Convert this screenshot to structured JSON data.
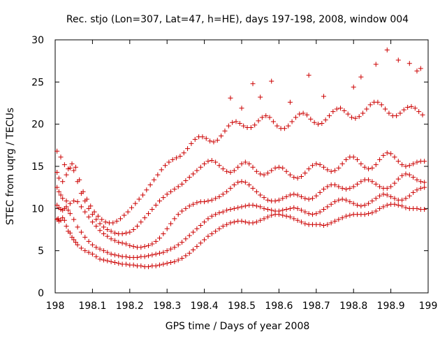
{
  "chart_data": {
    "type": "scatter",
    "title": "Rec. stjo (Lon=307, Lat=47, h=HE), days 197-198, 2008, window 004",
    "xlabel": "GPS time / Days of year 2008",
    "ylabel": "STEC from uqrg / TECUs",
    "xlim": [
      198,
      199
    ],
    "ylim": [
      0,
      30
    ],
    "x_ticks": [
      198,
      198.1,
      198.2,
      198.3,
      198.4,
      198.5,
      198.6,
      198.7,
      198.8,
      198.9,
      199
    ],
    "x_tick_labels": [
      "198",
      "198.1",
      "198.2",
      "198.3",
      "198.4",
      "198.5",
      "198.6",
      "198.7",
      "198.8",
      "198.9",
      "199"
    ],
    "y_ticks": [
      0,
      5,
      10,
      15,
      20,
      25,
      30
    ],
    "y_tick_labels": [
      "0",
      "5",
      "10",
      "15",
      "20",
      "25",
      "30"
    ],
    "grid": false,
    "legend": "none",
    "marker": "plus",
    "color": "#cc0000",
    "series": [
      {
        "x": [
          198.005,
          198.008,
          198.01,
          198.015,
          198.02,
          198.025,
          198.03,
          198.035,
          198.04,
          198.045,
          198.05,
          198.055,
          198.06,
          198.07,
          198.08,
          198.09,
          198.1,
          198.11,
          198.12,
          198.13,
          198.14,
          198.15,
          198.16,
          198.17,
          198.18,
          198.19,
          198.2,
          198.21,
          198.22,
          198.23,
          198.24,
          198.25,
          198.26,
          198.27,
          198.28,
          198.29,
          198.3,
          198.31,
          198.32,
          198.33,
          198.34,
          198.35,
          198.36,
          198.37,
          198.38,
          198.39,
          198.4,
          198.41,
          198.42,
          198.43,
          198.44,
          198.45,
          198.46,
          198.47,
          198.48,
          198.49,
          198.5,
          198.51,
          198.52,
          198.53,
          198.54,
          198.55,
          198.56,
          198.57,
          198.58,
          198.59,
          198.6,
          198.61,
          198.62,
          198.63,
          198.64,
          198.65,
          198.66,
          198.67,
          198.68,
          198.69,
          198.7,
          198.71,
          198.72,
          198.73,
          198.74,
          198.75,
          198.76,
          198.77,
          198.78,
          198.79,
          198.8,
          198.81,
          198.82,
          198.83,
          198.84,
          198.85,
          198.86,
          198.87,
          198.88,
          198.89,
          198.9,
          198.91,
          198.92,
          198.93,
          198.94,
          198.95,
          198.96,
          198.97,
          198.98,
          198.99
        ],
        "y": [
          8.7,
          8.8,
          8.5,
          8.6,
          8.9,
          8.6,
          7.9,
          7.3,
          7.1,
          6.6,
          6.3,
          6.0,
          5.7,
          5.3,
          5.0,
          4.8,
          4.6,
          4.3,
          4.0,
          3.9,
          3.8,
          3.7,
          3.6,
          3.5,
          3.4,
          3.4,
          3.3,
          3.3,
          3.2,
          3.2,
          3.1,
          3.1,
          3.2,
          3.2,
          3.3,
          3.4,
          3.5,
          3.6,
          3.7,
          3.9,
          4.1,
          4.4,
          4.7,
          5.1,
          5.5,
          5.9,
          6.3,
          6.7,
          7.0,
          7.3,
          7.6,
          7.9,
          8.1,
          8.3,
          8.4,
          8.5,
          8.5,
          8.4,
          8.3,
          8.3,
          8.4,
          8.6,
          8.8,
          9.0,
          9.2,
          9.3,
          9.3,
          9.2,
          9.1,
          9.0,
          8.8,
          8.6,
          8.4,
          8.2,
          8.1,
          8.1,
          8.1,
          8.1,
          8.0,
          8.1,
          8.3,
          8.5,
          8.7,
          8.9,
          9.1,
          9.2,
          9.3,
          9.3,
          9.3,
          9.3,
          9.4,
          9.5,
          9.7,
          10.0,
          10.2,
          10.4,
          10.5,
          10.5,
          10.4,
          10.3,
          10.1,
          10.0,
          10.0,
          10.0,
          9.9,
          9.9
        ]
      },
      {
        "x": [
          198.005,
          198.01,
          198.015,
          198.02,
          198.025,
          198.03,
          198.035,
          198.04,
          198.05,
          198.06,
          198.07,
          198.08,
          198.09,
          198.1,
          198.11,
          198.12,
          198.13,
          198.14,
          198.15,
          198.16,
          198.17,
          198.18,
          198.19,
          198.2,
          198.21,
          198.22,
          198.23,
          198.24,
          198.25,
          198.26,
          198.27,
          198.28,
          198.29,
          198.3,
          198.31,
          198.32,
          198.33,
          198.34,
          198.35,
          198.36,
          198.37,
          198.38,
          198.39,
          198.4,
          198.41,
          198.42,
          198.43,
          198.44,
          198.45,
          198.46,
          198.47,
          198.48,
          198.49,
          198.5,
          198.51,
          198.52,
          198.53,
          198.54,
          198.55,
          198.56,
          198.57,
          198.58,
          198.59,
          198.6,
          198.61,
          198.62,
          198.63,
          198.64,
          198.65,
          198.66,
          198.67,
          198.68,
          198.69,
          198.7,
          198.71,
          198.72,
          198.73,
          198.74,
          198.75,
          198.76,
          198.77,
          198.78,
          198.79,
          198.8,
          198.81,
          198.82,
          198.83,
          198.84,
          198.85,
          198.86,
          198.87,
          198.88,
          198.89,
          198.9,
          198.91,
          198.92,
          198.93,
          198.94,
          198.95,
          198.96,
          198.97,
          198.98,
          198.99
        ],
        "y": [
          10.4,
          10.1,
          9.9,
          9.8,
          10.0,
          10.2,
          9.8,
          9.4,
          8.7,
          7.8,
          7.2,
          6.6,
          6.1,
          5.7,
          5.4,
          5.2,
          5.0,
          4.8,
          4.6,
          4.5,
          4.4,
          4.3,
          4.3,
          4.2,
          4.2,
          4.2,
          4.3,
          4.3,
          4.4,
          4.5,
          4.6,
          4.7,
          4.8,
          5.0,
          5.2,
          5.4,
          5.7,
          6.0,
          6.4,
          6.8,
          7.2,
          7.6,
          8.0,
          8.4,
          8.8,
          9.1,
          9.3,
          9.5,
          9.6,
          9.8,
          9.9,
          10.0,
          10.1,
          10.2,
          10.3,
          10.4,
          10.4,
          10.3,
          10.2,
          10.0,
          9.9,
          9.8,
          9.7,
          9.7,
          9.8,
          9.9,
          10.0,
          10.1,
          10.0,
          9.8,
          9.6,
          9.4,
          9.3,
          9.4,
          9.6,
          9.9,
          10.2,
          10.5,
          10.8,
          11.0,
          11.1,
          11.0,
          10.8,
          10.6,
          10.4,
          10.3,
          10.4,
          10.6,
          10.9,
          11.2,
          11.5,
          11.7,
          11.6,
          11.4,
          11.2,
          11.0,
          11.0,
          11.2,
          11.5,
          11.9,
          12.2,
          12.4,
          12.5
        ]
      },
      {
        "x": [
          198.005,
          198.01,
          198.015,
          198.02,
          198.03,
          198.04,
          198.05,
          198.06,
          198.07,
          198.08,
          198.09,
          198.1,
          198.11,
          198.12,
          198.13,
          198.14,
          198.15,
          198.16,
          198.17,
          198.18,
          198.19,
          198.2,
          198.21,
          198.22,
          198.23,
          198.24,
          198.25,
          198.26,
          198.27,
          198.28,
          198.29,
          198.3,
          198.31,
          198.32,
          198.33,
          198.34,
          198.35,
          198.36,
          198.37,
          198.38,
          198.39,
          198.4,
          198.41,
          198.42,
          198.43,
          198.44,
          198.45,
          198.46,
          198.47,
          198.48,
          198.49,
          198.5,
          198.51,
          198.52,
          198.53,
          198.54,
          198.55,
          198.56,
          198.57,
          198.58,
          198.59,
          198.6,
          198.61,
          198.62,
          198.63,
          198.64,
          198.65,
          198.66,
          198.67,
          198.68,
          198.69,
          198.7,
          198.71,
          198.72,
          198.73,
          198.74,
          198.75,
          198.76,
          198.77,
          198.78,
          198.79,
          198.8,
          198.81,
          198.82,
          198.83,
          198.84,
          198.85,
          198.86,
          198.87,
          198.88,
          198.89,
          198.9,
          198.91,
          198.92,
          198.93,
          198.94,
          198.95,
          198.96,
          198.97,
          198.98,
          198.99
        ],
        "y": [
          12.5,
          12.0,
          11.6,
          11.2,
          10.9,
          10.6,
          10.9,
          10.8,
          10.2,
          9.6,
          9.0,
          8.4,
          7.9,
          7.4,
          7.0,
          6.7,
          6.4,
          6.2,
          6.0,
          5.9,
          5.8,
          5.6,
          5.5,
          5.4,
          5.4,
          5.5,
          5.6,
          5.8,
          6.1,
          6.5,
          7.0,
          7.6,
          8.2,
          8.8,
          9.3,
          9.7,
          10.0,
          10.3,
          10.5,
          10.7,
          10.8,
          10.8,
          10.9,
          11.0,
          11.2,
          11.4,
          11.7,
          12.0,
          12.4,
          12.8,
          13.1,
          13.2,
          13.1,
          12.8,
          12.4,
          12.0,
          11.6,
          11.3,
          11.0,
          10.9,
          10.9,
          11.0,
          11.2,
          11.4,
          11.6,
          11.7,
          11.6,
          11.4,
          11.2,
          11.1,
          11.2,
          11.5,
          11.9,
          12.3,
          12.6,
          12.8,
          12.8,
          12.6,
          12.4,
          12.3,
          12.4,
          12.6,
          12.9,
          13.2,
          13.4,
          13.4,
          13.2,
          12.9,
          12.6,
          12.4,
          12.4,
          12.6,
          13.0,
          13.5,
          13.9,
          14.1,
          14.0,
          13.7,
          13.4,
          13.2,
          13.1
        ]
      },
      {
        "x": [
          198.005,
          198.01,
          198.02,
          198.03,
          198.04,
          198.05,
          198.06,
          198.07,
          198.08,
          198.09,
          198.1,
          198.11,
          198.12,
          198.13,
          198.14,
          198.15,
          198.16,
          198.17,
          198.18,
          198.19,
          198.2,
          198.21,
          198.22,
          198.23,
          198.24,
          198.25,
          198.26,
          198.27,
          198.28,
          198.29,
          198.3,
          198.31,
          198.32,
          198.33,
          198.34,
          198.35,
          198.36,
          198.37,
          198.38,
          198.39,
          198.4,
          198.41,
          198.42,
          198.43,
          198.44,
          198.45,
          198.46,
          198.47,
          198.48,
          198.49,
          198.5,
          198.51,
          198.52,
          198.53,
          198.54,
          198.55,
          198.56,
          198.57,
          198.58,
          198.59,
          198.6,
          198.61,
          198.62,
          198.63,
          198.64,
          198.65,
          198.66,
          198.67,
          198.68,
          198.69,
          198.7,
          198.71,
          198.72,
          198.73,
          198.74,
          198.75,
          198.76,
          198.77,
          198.78,
          198.79,
          198.8,
          198.81,
          198.82,
          198.83,
          198.84,
          198.85,
          198.86,
          198.87,
          198.88,
          198.89,
          198.9,
          198.91,
          198.92,
          198.93,
          198.94,
          198.95,
          198.96,
          198.97,
          198.98,
          198.99
        ],
        "y": [
          14.3,
          13.6,
          13.2,
          14.0,
          14.8,
          14.5,
          13.2,
          11.8,
          10.9,
          10.0,
          9.3,
          8.7,
          8.2,
          7.8,
          7.5,
          7.3,
          7.1,
          7.0,
          7.0,
          7.1,
          7.2,
          7.5,
          7.9,
          8.4,
          8.9,
          9.4,
          9.9,
          10.4,
          10.9,
          11.3,
          11.7,
          12.0,
          12.3,
          12.6,
          12.9,
          13.3,
          13.7,
          14.1,
          14.5,
          14.9,
          15.3,
          15.6,
          15.7,
          15.5,
          15.1,
          14.7,
          14.4,
          14.3,
          14.5,
          14.9,
          15.3,
          15.5,
          15.3,
          14.9,
          14.4,
          14.1,
          14.0,
          14.2,
          14.5,
          14.8,
          14.9,
          14.8,
          14.4,
          14.0,
          13.7,
          13.6,
          13.8,
          14.2,
          14.7,
          15.1,
          15.3,
          15.2,
          14.9,
          14.6,
          14.4,
          14.5,
          14.8,
          15.3,
          15.8,
          16.1,
          16.1,
          15.8,
          15.3,
          14.9,
          14.7,
          14.8,
          15.2,
          15.8,
          16.3,
          16.6,
          16.5,
          16.1,
          15.6,
          15.2,
          15.0,
          15.1,
          15.3,
          15.5,
          15.6,
          15.6
        ]
      },
      {
        "x": [
          198.005,
          198.015,
          198.025,
          198.035,
          198.045,
          198.055,
          198.065,
          198.075,
          198.085,
          198.095,
          198.105,
          198.115,
          198.125,
          198.135,
          198.145,
          198.155,
          198.165,
          198.175,
          198.185,
          198.195,
          198.205,
          198.215,
          198.225,
          198.235,
          198.245,
          198.255,
          198.265,
          198.275,
          198.285,
          198.295,
          198.305,
          198.315,
          198.325,
          198.335,
          198.345,
          198.355,
          198.365,
          198.375,
          198.385,
          198.395,
          198.405,
          198.415,
          198.425,
          198.435,
          198.445,
          198.455,
          198.465,
          198.475,
          198.485,
          198.495,
          198.505,
          198.515,
          198.525,
          198.535,
          198.545,
          198.555,
          198.565,
          198.575,
          198.585,
          198.595,
          198.605,
          198.615,
          198.625,
          198.635,
          198.645,
          198.655,
          198.665,
          198.675,
          198.685,
          198.695,
          198.705,
          198.715,
          198.725,
          198.735,
          198.745,
          198.755,
          198.765,
          198.775,
          198.785,
          198.795,
          198.805,
          198.815,
          198.825,
          198.835,
          198.845,
          198.855,
          198.865,
          198.875,
          198.885,
          198.895,
          198.905,
          198.915,
          198.925,
          198.935,
          198.945,
          198.955,
          198.965,
          198.975,
          198.985
        ],
        "y": [
          16.8,
          16.1,
          15.2,
          14.7,
          15.3,
          14.9,
          13.4,
          12.0,
          11.1,
          10.3,
          9.6,
          9.1,
          8.7,
          8.4,
          8.3,
          8.3,
          8.5,
          8.8,
          9.2,
          9.6,
          10.1,
          10.6,
          11.1,
          11.6,
          12.2,
          12.8,
          13.4,
          14.0,
          14.6,
          15.1,
          15.5,
          15.8,
          16.0,
          16.2,
          16.6,
          17.1,
          17.7,
          18.2,
          18.5,
          18.5,
          18.3,
          18.0,
          17.9,
          18.1,
          18.6,
          19.2,
          19.8,
          20.2,
          20.3,
          20.1,
          19.8,
          19.6,
          19.6,
          19.9,
          20.4,
          20.8,
          21.0,
          20.8,
          20.3,
          19.8,
          19.5,
          19.5,
          19.8,
          20.3,
          20.8,
          21.2,
          21.3,
          21.1,
          20.6,
          20.2,
          20.0,
          20.1,
          20.5,
          21.0,
          21.5,
          21.8,
          21.9,
          21.6,
          21.2,
          20.8,
          20.7,
          20.9,
          21.3,
          21.8,
          22.3,
          22.6,
          22.6,
          22.3,
          21.8,
          21.3,
          21.0,
          21.0,
          21.3,
          21.7,
          22.0,
          22.1,
          21.9,
          21.5,
          21.1
        ]
      },
      {
        "x": [
          198.47,
          198.5,
          198.53,
          198.55,
          198.58,
          198.63,
          198.68,
          198.72,
          198.8,
          198.82,
          198.86,
          198.89,
          198.92,
          198.95,
          198.97,
          198.98
        ],
        "y": [
          23.1,
          21.9,
          24.8,
          23.2,
          25.1,
          22.6,
          25.8,
          23.3,
          24.4,
          25.6,
          27.1,
          28.8,
          27.6,
          27.2,
          26.3,
          26.6
        ]
      }
    ]
  }
}
